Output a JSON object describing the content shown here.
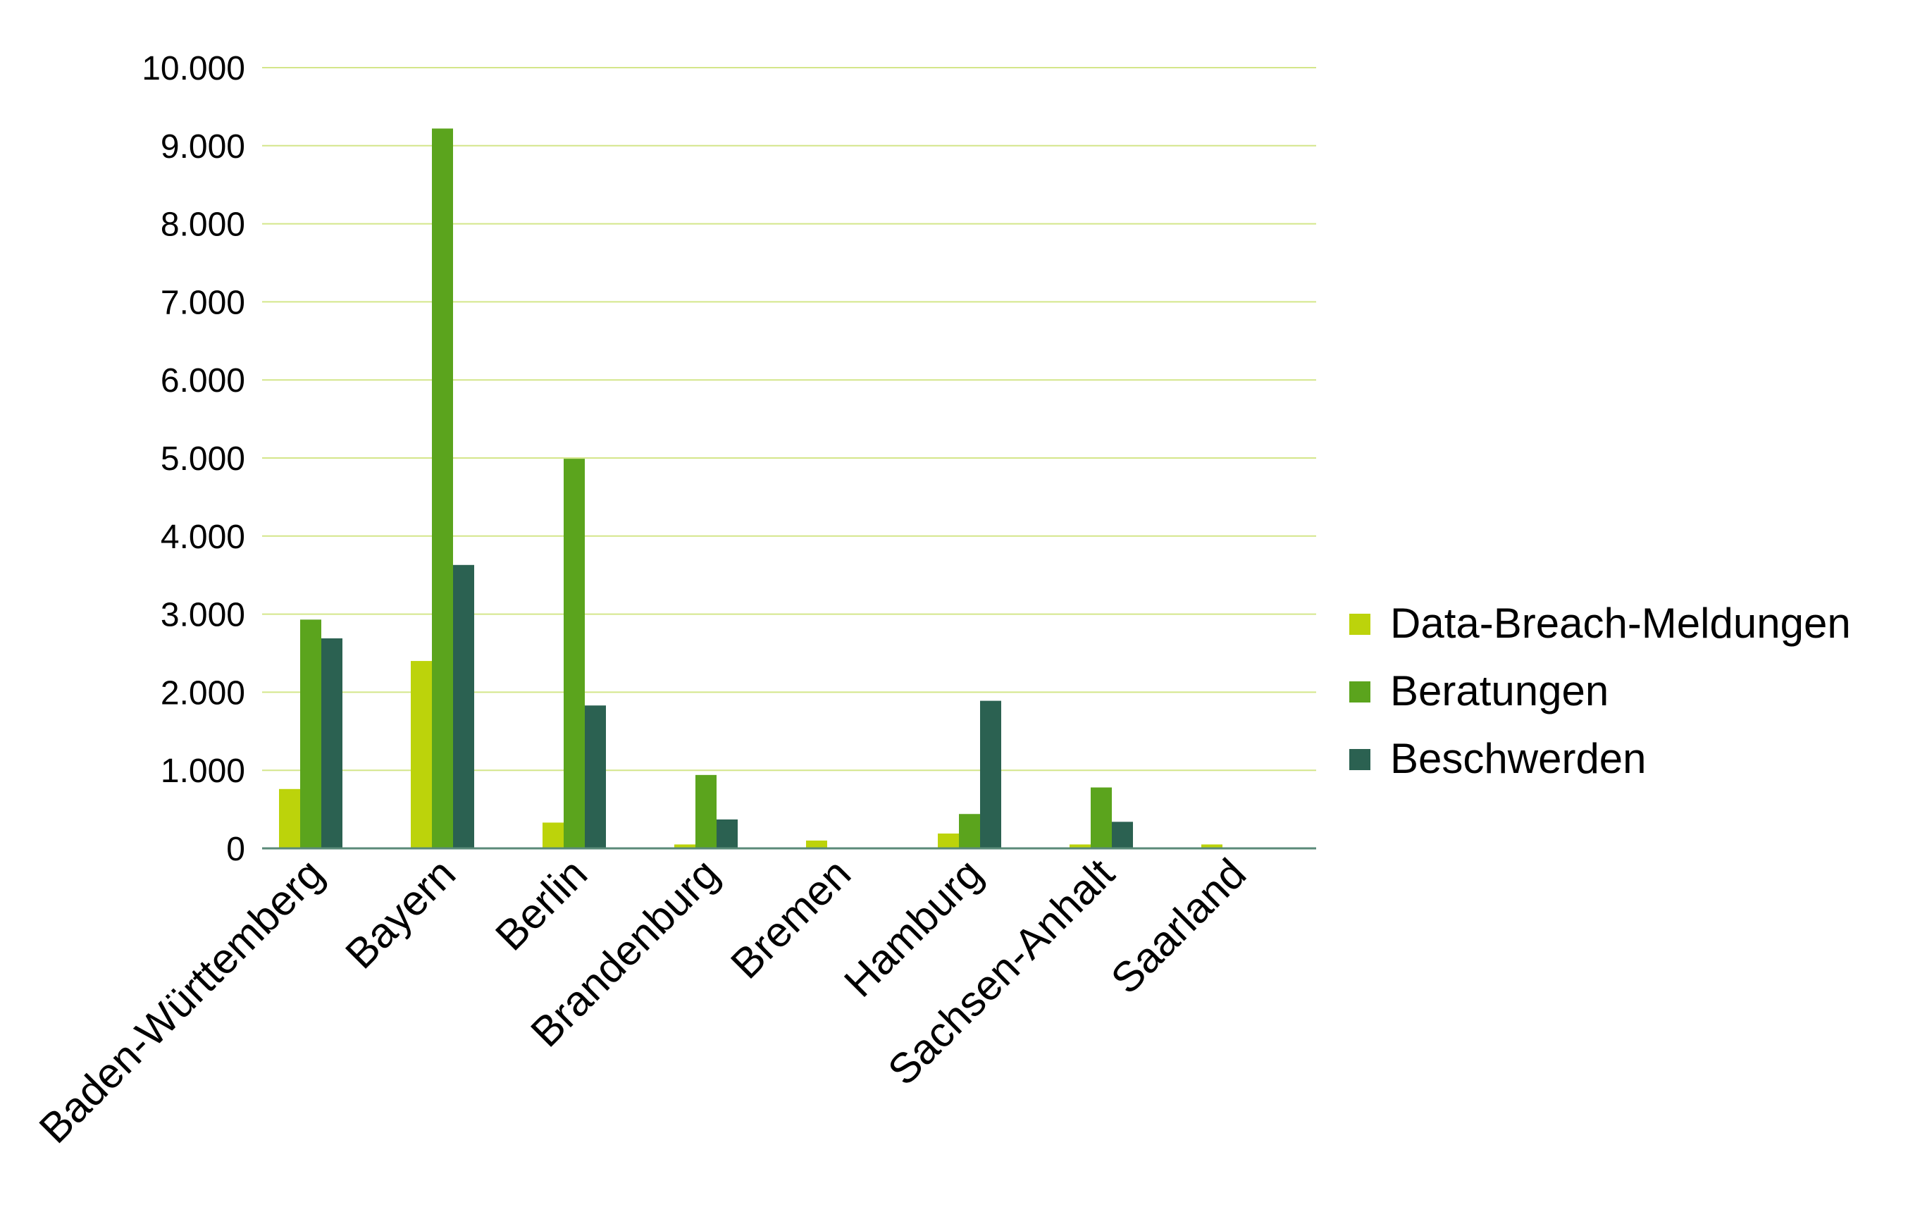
{
  "chart_data": {
    "type": "bar",
    "categories": [
      "Baden-Württemberg",
      "Bayern",
      "Berlin",
      "Brandenburg",
      "Bremen",
      "Hamburg",
      "Sachsen-Anhalt",
      "Saarland"
    ],
    "series": [
      {
        "name": "Data-Breach-Meldungen",
        "color": "#bcd30b",
        "values": [
          760,
          2400,
          330,
          50,
          100,
          190,
          50,
          50
        ]
      },
      {
        "name": "Beratungen",
        "color": "#5ba41d",
        "values": [
          2930,
          9220,
          4990,
          940,
          0,
          440,
          780,
          0
        ]
      },
      {
        "name": "Beschwerden",
        "color": "#2b6151",
        "values": [
          2690,
          3630,
          1830,
          370,
          0,
          1890,
          340,
          0
        ]
      }
    ],
    "yticks": [
      "0",
      "1.000",
      "2.000",
      "3.000",
      "4.000",
      "5.000",
      "6.000",
      "7.000",
      "8.000",
      "9.000",
      "10.000"
    ],
    "ylim": [
      0,
      10000
    ],
    "grid": true,
    "gridline_color": "#d4e68a",
    "axis_color": "#5a8a78",
    "legend_position": "right"
  }
}
